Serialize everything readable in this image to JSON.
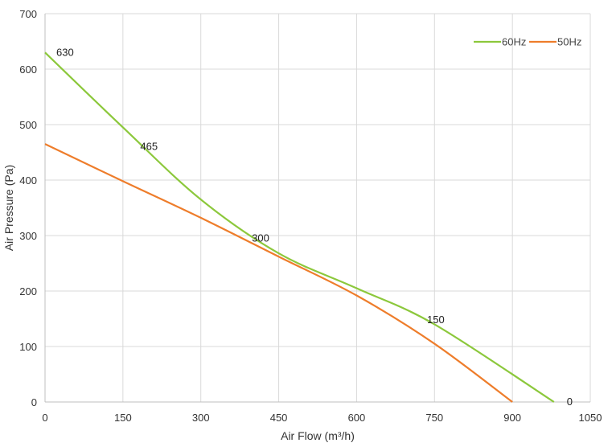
{
  "chart_data": {
    "type": "line",
    "title": "",
    "xlabel": "Air Flow  (m³/h)",
    "ylabel": "Air Pressure  (Pa)",
    "xlim": [
      0,
      1050
    ],
    "ylim": [
      0,
      700
    ],
    "x_ticks": [
      0,
      150,
      300,
      450,
      600,
      750,
      900,
      1050
    ],
    "y_ticks": [
      0,
      100,
      200,
      300,
      400,
      500,
      600,
      700
    ],
    "grid": true,
    "legend_position": "top-right",
    "series": [
      {
        "name": "60Hz",
        "color": "#8cc83c",
        "x": [
          0,
          150,
          300,
          450,
          600,
          750,
          980
        ],
        "y": [
          630,
          495,
          365,
          268,
          205,
          140,
          0
        ]
      },
      {
        "name": "50Hz",
        "color": "#ee7d2b",
        "x": [
          0,
          150,
          300,
          450,
          600,
          750,
          900
        ],
        "y": [
          465,
          398,
          332,
          262,
          192,
          105,
          0
        ]
      }
    ],
    "annotations": [
      {
        "text": "630",
        "x": 0,
        "y": 630
      },
      {
        "text": "465",
        "x": 205,
        "y": 460
      },
      {
        "text": "300",
        "x": 420,
        "y": 292
      },
      {
        "text": "150",
        "x": 745,
        "y": 145
      },
      {
        "text": "0",
        "x": 980,
        "y": 0
      }
    ]
  }
}
